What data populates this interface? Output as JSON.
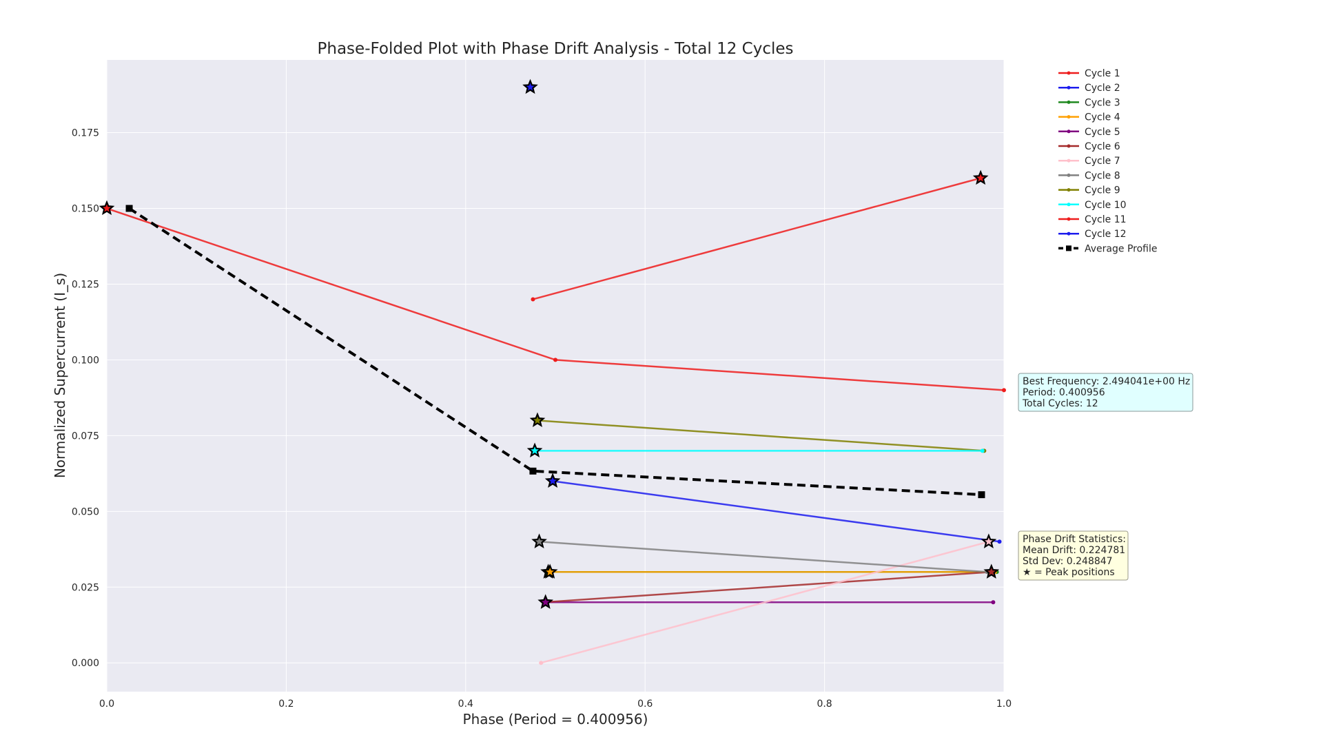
{
  "chart_data": {
    "type": "line",
    "title": "Phase-Folded Plot with Phase Drift Analysis - Total 12 Cycles",
    "xlabel": "Phase (Period = 0.400956)",
    "ylabel": "Normalized Supercurrent (I_s)",
    "xlim": [
      0.0,
      1.0
    ],
    "ylim": [
      -0.0095,
      0.199
    ],
    "xticks": [
      "0.0",
      "0.2",
      "0.4",
      "0.6",
      "0.8",
      "1.0"
    ],
    "xtick_values": [
      0.0,
      0.2,
      0.4,
      0.6,
      0.8,
      1.0
    ],
    "yticks": [
      "0.000",
      "0.025",
      "0.050",
      "0.075",
      "0.100",
      "0.125",
      "0.150",
      "0.175"
    ],
    "ytick_values": [
      0.0,
      0.025,
      0.05,
      0.075,
      0.1,
      0.125,
      0.15,
      0.175
    ],
    "grid": true,
    "legend_position": "outside-right-top",
    "series": [
      {
        "name": "Cycle 1",
        "color": "#ee1c1c",
        "x": [
          0.0,
          0.5,
          1.0
        ],
        "y": [
          0.15,
          0.1,
          0.09
        ],
        "peak": [
          0.0,
          0.15
        ]
      },
      {
        "name": "Cycle 2",
        "color": "#1c1cee",
        "x": [
          0.497,
          0.995
        ],
        "y": [
          0.06,
          0.04
        ],
        "peak": [
          0.497,
          0.06
        ]
      },
      {
        "name": "Cycle 3",
        "color": "#1e881e",
        "x": [
          0.492,
          0.992
        ],
        "y": [
          0.03,
          0.03
        ],
        "peak": [
          0.492,
          0.03
        ]
      },
      {
        "name": "Cycle 4",
        "color": "#ffa000",
        "x": [
          0.494,
          0.99
        ],
        "y": [
          0.03,
          0.03
        ],
        "peak": [
          0.494,
          0.03
        ]
      },
      {
        "name": "Cycle 5",
        "color": "#800080",
        "x": [
          0.489,
          0.988
        ],
        "y": [
          0.02,
          0.02
        ],
        "peak": [
          0.489,
          0.02
        ]
      },
      {
        "name": "Cycle 6",
        "color": "#a52a2a",
        "x": [
          0.487,
          0.986
        ],
        "y": [
          0.02,
          0.03
        ],
        "peak": [
          0.986,
          0.03
        ]
      },
      {
        "name": "Cycle 7",
        "color": "#ffc0cb",
        "x": [
          0.484,
          0.983
        ],
        "y": [
          0.0,
          0.04
        ],
        "peak": [
          0.983,
          0.04
        ]
      },
      {
        "name": "Cycle 8",
        "color": "#808080",
        "x": [
          0.482,
          0.981
        ],
        "y": [
          0.04,
          0.03
        ],
        "peak": [
          0.482,
          0.04
        ]
      },
      {
        "name": "Cycle 9",
        "color": "#808000",
        "x": [
          0.48,
          0.978
        ],
        "y": [
          0.08,
          0.07
        ],
        "peak": [
          0.48,
          0.08
        ]
      },
      {
        "name": "Cycle 10",
        "color": "#00ffff",
        "x": [
          0.477,
          0.976
        ],
        "y": [
          0.07,
          0.07
        ],
        "peak": [
          0.477,
          0.07
        ]
      },
      {
        "name": "Cycle 11",
        "color": "#ee1c1c",
        "x": [
          0.475,
          0.974
        ],
        "y": [
          0.12,
          0.16
        ],
        "peak": [
          0.974,
          0.16
        ]
      },
      {
        "name": "Cycle 12",
        "color": "#1c1cee",
        "x": [
          0.472
        ],
        "y": [
          0.19
        ],
        "peak": [
          0.472,
          0.19
        ]
      }
    ],
    "average_profile": {
      "name": "Average Profile",
      "color": "#000000",
      "x": [
        0.025,
        0.475,
        0.975
      ],
      "y": [
        0.15,
        0.0633,
        0.0555
      ]
    }
  },
  "info_box": {
    "lines": [
      "Best Frequency: 2.494041e+00 Hz",
      "Period: 0.400956",
      "Total Cycles: 12"
    ],
    "bg": "#e0ffff"
  },
  "stats_box": {
    "lines": [
      "Phase Drift Statistics:",
      "Mean Drift: 0.224781",
      "Std Dev: 0.248847",
      "★ = Peak positions"
    ],
    "bg": "#ffffe0"
  },
  "colors": {
    "plot_bg": "#eaeaf2",
    "grid": "#ffffff",
    "text": "#262626"
  }
}
